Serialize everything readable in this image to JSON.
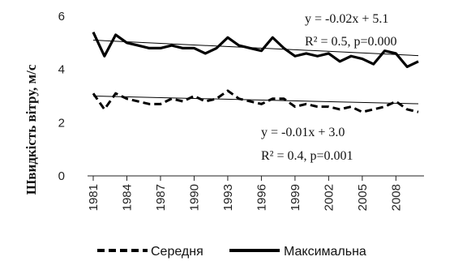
{
  "chart_data": {
    "type": "line",
    "ylabel": "Швидкість вітру, м/с",
    "xlabel": "",
    "ylim": [
      0,
      6
    ],
    "yticks": [
      0,
      2,
      4,
      6
    ],
    "xtick_labels": [
      "1981",
      "1984",
      "1987",
      "1990",
      "1993",
      "1996",
      "1999",
      "2002",
      "2005",
      "2008"
    ],
    "x": [
      1981,
      1982,
      1983,
      1984,
      1985,
      1986,
      1987,
      1988,
      1989,
      1990,
      1991,
      1992,
      1993,
      1994,
      1995,
      1996,
      1997,
      1998,
      1999,
      2000,
      2001,
      2002,
      2003,
      2004,
      2005,
      2006,
      2007,
      2008,
      2009,
      2010
    ],
    "series": [
      {
        "name": "Середня",
        "style": "dashed",
        "color": "#000000",
        "values": [
          3.1,
          2.5,
          3.1,
          2.9,
          2.8,
          2.7,
          2.7,
          2.9,
          2.8,
          3.0,
          2.8,
          2.9,
          3.2,
          2.9,
          2.8,
          2.7,
          2.9,
          2.9,
          2.6,
          2.7,
          2.6,
          2.6,
          2.5,
          2.6,
          2.4,
          2.5,
          2.6,
          2.8,
          2.5,
          2.4
        ],
        "trend": {
          "slope": -0.01,
          "intercept": 3.0,
          "equation": "y = -0.01x + 3.0",
          "stats": "R² = 0.4, p=0.001"
        }
      },
      {
        "name": "Максимальна",
        "style": "solid",
        "color": "#000000",
        "values": [
          5.4,
          4.5,
          5.3,
          5.0,
          4.9,
          4.8,
          4.8,
          4.9,
          4.8,
          4.8,
          4.6,
          4.8,
          5.2,
          4.9,
          4.8,
          4.7,
          5.2,
          4.8,
          4.5,
          4.6,
          4.5,
          4.6,
          4.3,
          4.5,
          4.4,
          4.2,
          4.7,
          4.6,
          4.1,
          4.3
        ],
        "trend": {
          "slope": -0.02,
          "intercept": 5.1,
          "equation": "y = -0.02x + 5.1",
          "stats": "R² = 0.5, p=0.000"
        }
      }
    ],
    "legend_position": "bottom",
    "grid": false
  }
}
